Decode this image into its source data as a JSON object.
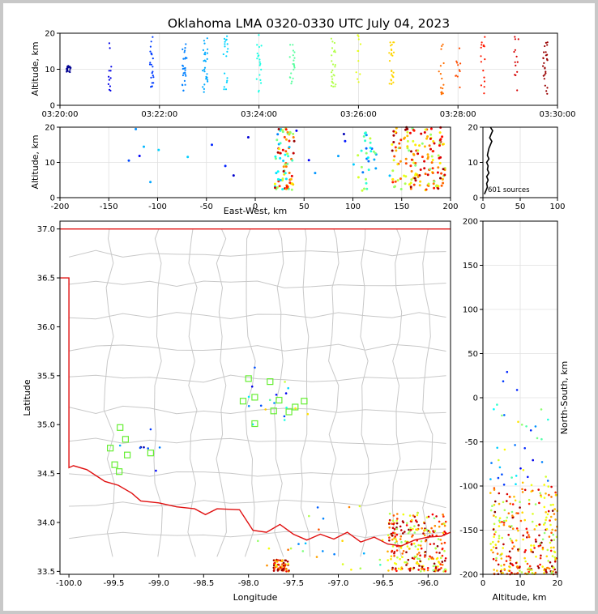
{
  "title": "Oklahoma LMA 0320-0330 UTC July 04, 2023",
  "colors": {
    "figure_bg": "#ffffff",
    "outer_bg": "#c8c8c8",
    "state_border": "#e01010",
    "county": "#c8c8c8",
    "station": "#66ee33",
    "hist": "#000000"
  },
  "chart_data": [
    {
      "id": "time-height",
      "type": "scatter",
      "xlabel": "",
      "ylabel": "Altitude, km",
      "xlim": [
        "03:20:00",
        "03:30:00"
      ],
      "x_ticks": [
        "03:20:00",
        "03:22:00",
        "03:24:00",
        "03:26:00",
        "03:28:00",
        "03:30:00"
      ],
      "ylim": [
        0,
        20
      ],
      "y_ticks": [
        "0",
        "10",
        "20"
      ],
      "points_note": "time-colored VHF sources",
      "clusters": [
        {
          "t": "03:20:10",
          "alt": [
            9,
            11
          ]
        },
        {
          "t": "03:21:00",
          "alt": [
            4,
            18
          ]
        },
        {
          "t": "03:21:50",
          "alt": [
            5,
            19
          ]
        },
        {
          "t": "03:22:30",
          "alt": [
            4,
            17
          ]
        },
        {
          "t": "03:22:55",
          "alt": [
            3,
            19
          ]
        },
        {
          "t": "03:23:20",
          "alt": [
            3,
            20
          ]
        },
        {
          "t": "03:24:00",
          "alt": [
            3,
            20
          ]
        },
        {
          "t": "03:24:40",
          "alt": [
            6,
            17
          ]
        },
        {
          "t": "03:25:30",
          "alt": [
            5,
            20
          ]
        },
        {
          "t": "03:26:00",
          "alt": [
            6,
            20
          ]
        },
        {
          "t": "03:26:40",
          "alt": [
            4,
            18
          ]
        },
        {
          "t": "03:27:40",
          "alt": [
            3,
            20
          ]
        },
        {
          "t": "03:28:00",
          "alt": [
            4,
            17
          ]
        },
        {
          "t": "03:28:30",
          "alt": [
            3,
            19
          ]
        },
        {
          "t": "03:29:10",
          "alt": [
            4,
            20
          ]
        },
        {
          "t": "03:29:45",
          "alt": [
            3,
            18
          ]
        }
      ]
    },
    {
      "id": "ew-height",
      "type": "scatter",
      "xlabel": "East-West, km",
      "ylabel": "Altitude, km",
      "xlim": [
        -200,
        200
      ],
      "x_ticks": [
        "-200",
        "-150",
        "-100",
        "-50",
        "0",
        "50",
        "100",
        "150",
        "200"
      ],
      "ylim": [
        0,
        20
      ],
      "y_ticks": [
        "0",
        "10",
        "20"
      ]
    },
    {
      "id": "altitude-histogram",
      "type": "line",
      "xlim": [
        0,
        100
      ],
      "x_ticks": [
        "0",
        "50",
        "100"
      ],
      "ylim": [
        0,
        20
      ],
      "y_ticks": [
        "0",
        "10",
        "20"
      ],
      "annotation": "601 sources",
      "profile": [
        [
          2,
          1
        ],
        [
          4,
          2
        ],
        [
          6,
          3
        ],
        [
          5,
          4
        ],
        [
          7,
          5
        ],
        [
          5,
          6
        ],
        [
          8,
          7
        ],
        [
          6,
          8
        ],
        [
          7,
          9
        ],
        [
          5,
          10
        ],
        [
          8,
          11
        ],
        [
          6,
          12
        ],
        [
          7,
          13
        ],
        [
          8,
          14
        ],
        [
          10,
          15
        ],
        [
          12,
          16
        ],
        [
          9,
          17
        ],
        [
          11,
          18
        ],
        [
          13,
          19
        ],
        [
          10,
          20
        ]
      ]
    },
    {
      "id": "plan-view",
      "type": "scatter",
      "xlabel": "Longitude",
      "ylabel": "Latitude",
      "xlim": [
        -100.1,
        -95.75
      ],
      "x_ticks": [
        "-100.0",
        "-99.5",
        "-99.0",
        "-98.5",
        "-98.0",
        "-97.5",
        "-97.0",
        "-96.5",
        "-96.0"
      ],
      "ylim": [
        33.47,
        37.08
      ],
      "y_ticks": [
        "33.5",
        "34.0",
        "34.5",
        "35.0",
        "35.5",
        "36.0",
        "36.5",
        "37.0"
      ],
      "stations": [
        [
          -98.0,
          35.47
        ],
        [
          -97.76,
          35.44
        ],
        [
          -97.93,
          35.28
        ],
        [
          -98.06,
          35.24
        ],
        [
          -97.66,
          35.25
        ],
        [
          -97.38,
          35.24
        ],
        [
          -97.48,
          35.18
        ],
        [
          -97.72,
          35.14
        ],
        [
          -97.55,
          35.13
        ],
        [
          -97.93,
          35.01
        ],
        [
          -99.43,
          34.97
        ],
        [
          -99.37,
          34.85
        ],
        [
          -99.54,
          34.76
        ],
        [
          -99.09,
          34.71
        ],
        [
          -99.35,
          34.69
        ],
        [
          -99.49,
          34.59
        ],
        [
          -99.44,
          34.52
        ]
      ]
    },
    {
      "id": "height-ns",
      "type": "scatter",
      "xlabel": "Altitude, km",
      "ylabel": "North-South, km",
      "xlim": [
        0,
        20
      ],
      "x_ticks": [
        "0",
        "10",
        "20"
      ],
      "ylim": [
        -200,
        200
      ],
      "y_ticks": [
        "-200",
        "-150",
        "-100",
        "-50",
        "0",
        "50",
        "100",
        "150",
        "200"
      ]
    }
  ]
}
